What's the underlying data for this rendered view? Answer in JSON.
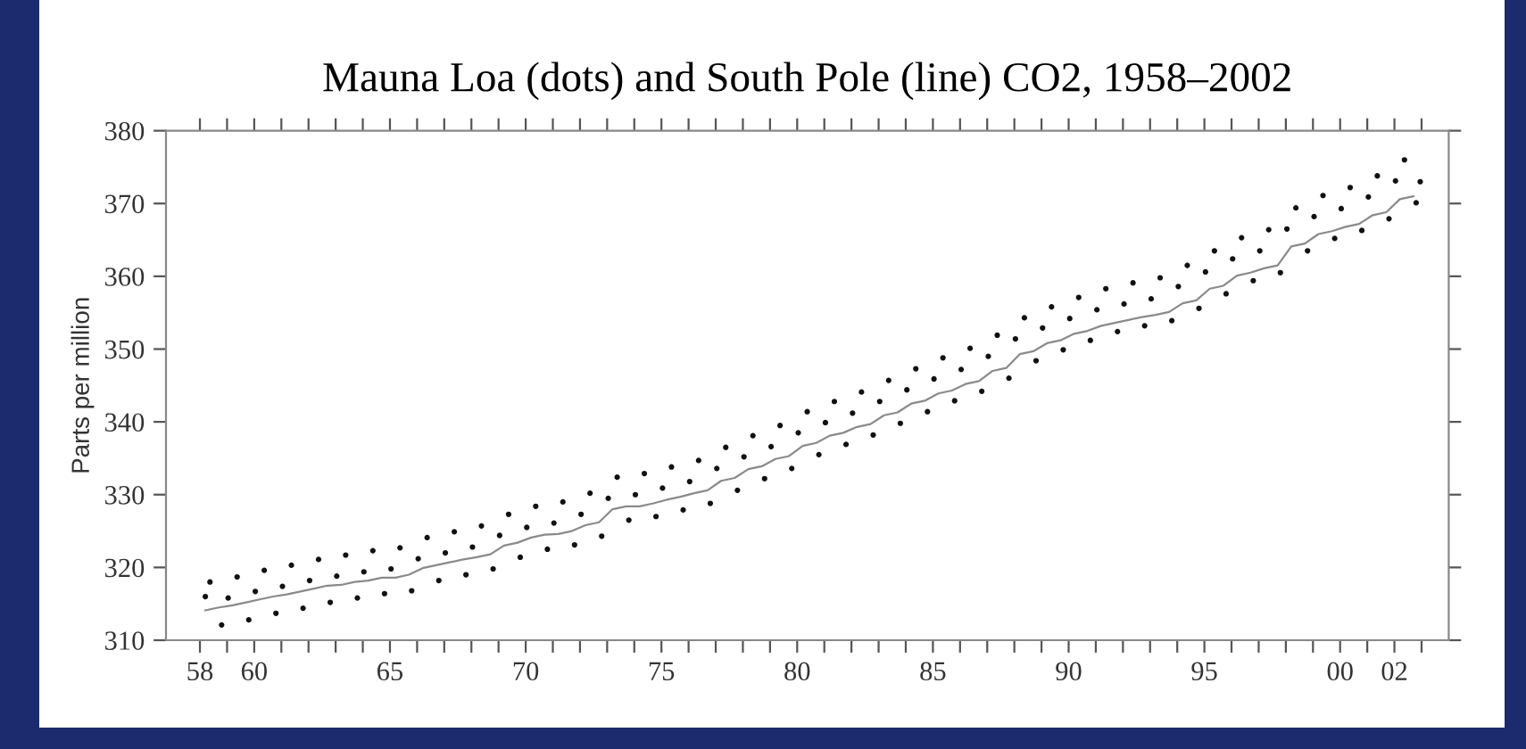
{
  "chart_data": {
    "type": "line",
    "title": "Mauna Loa (dots) and South Pole (line) CO2, 1958–2002",
    "ylabel": "Parts per million",
    "xlim": [
      1956.75,
      2004
    ],
    "ylim": [
      310,
      380
    ],
    "xticks": [
      {
        "value": 1958,
        "label": "58"
      },
      {
        "value": 1959,
        "label": null
      },
      {
        "value": 1960,
        "label": "60"
      },
      {
        "value": 1961,
        "label": null
      },
      {
        "value": 1962,
        "label": null
      },
      {
        "value": 1963,
        "label": null
      },
      {
        "value": 1964,
        "label": null
      },
      {
        "value": 1965,
        "label": "65"
      },
      {
        "value": 1966,
        "label": null
      },
      {
        "value": 1967,
        "label": null
      },
      {
        "value": 1968,
        "label": null
      },
      {
        "value": 1969,
        "label": null
      },
      {
        "value": 1970,
        "label": "70"
      },
      {
        "value": 1971,
        "label": null
      },
      {
        "value": 1972,
        "label": null
      },
      {
        "value": 1973,
        "label": null
      },
      {
        "value": 1974,
        "label": null
      },
      {
        "value": 1975,
        "label": "75"
      },
      {
        "value": 1976,
        "label": null
      },
      {
        "value": 1977,
        "label": null
      },
      {
        "value": 1978,
        "label": null
      },
      {
        "value": 1979,
        "label": null
      },
      {
        "value": 1980,
        "label": "80"
      },
      {
        "value": 1981,
        "label": null
      },
      {
        "value": 1982,
        "label": null
      },
      {
        "value": 1983,
        "label": null
      },
      {
        "value": 1984,
        "label": null
      },
      {
        "value": 1985,
        "label": "85"
      },
      {
        "value": 1986,
        "label": null
      },
      {
        "value": 1987,
        "label": null
      },
      {
        "value": 1988,
        "label": null
      },
      {
        "value": 1989,
        "label": null
      },
      {
        "value": 1990,
        "label": "90"
      },
      {
        "value": 1991,
        "label": null
      },
      {
        "value": 1992,
        "label": null
      },
      {
        "value": 1993,
        "label": null
      },
      {
        "value": 1994,
        "label": null
      },
      {
        "value": 1995,
        "label": "95"
      },
      {
        "value": 1996,
        "label": null
      },
      {
        "value": 1997,
        "label": null
      },
      {
        "value": 1998,
        "label": null
      },
      {
        "value": 1999,
        "label": null
      },
      {
        "value": 2000,
        "label": "00"
      },
      {
        "value": 2001,
        "label": null
      },
      {
        "value": 2002,
        "label": "02"
      },
      {
        "value": 2003,
        "label": null
      }
    ],
    "yticks": [
      310,
      320,
      330,
      340,
      350,
      360,
      370,
      380
    ],
    "series": [
      {
        "color": "#8a8a8a",
        "line_style": "solid",
        "marker": "none",
        "x": [
          1958.2,
          1958.7,
          1959.2,
          1959.7,
          1960.2,
          1960.7,
          1961.2,
          1961.7,
          1962.2,
          1962.7,
          1963.2,
          1963.7,
          1964.2,
          1964.7,
          1965.2,
          1965.7,
          1966.2,
          1966.7,
          1967.2,
          1967.7,
          1968.2,
          1968.7,
          1969.2,
          1969.7,
          1970.2,
          1970.7,
          1971.2,
          1971.7,
          1972.2,
          1972.7,
          1973.2,
          1973.7,
          1974.2,
          1974.7,
          1975.2,
          1975.7,
          1976.2,
          1976.7,
          1977.2,
          1977.7,
          1978.2,
          1978.7,
          1979.2,
          1979.7,
          1980.2,
          1980.7,
          1981.2,
          1981.7,
          1982.2,
          1982.7,
          1983.2,
          1983.7,
          1984.2,
          1984.7,
          1985.2,
          1985.7,
          1986.2,
          1986.7,
          1987.2,
          1987.7,
          1988.2,
          1988.7,
          1989.2,
          1989.7,
          1990.2,
          1990.7,
          1991.2,
          1991.7,
          1992.2,
          1992.7,
          1993.2,
          1993.7,
          1994.2,
          1994.7,
          1995.2,
          1995.7,
          1996.2,
          1996.7,
          1997.2,
          1997.7,
          1998.2,
          1998.7,
          1999.2,
          1999.7,
          2000.2,
          2000.7,
          2001.2,
          2001.7,
          2002.2,
          2002.7
        ],
        "values": [
          314.1,
          314.5,
          314.8,
          315.2,
          315.6,
          316.0,
          316.3,
          316.7,
          317.1,
          317.5,
          317.6,
          318.0,
          318.2,
          318.6,
          318.6,
          319.0,
          319.9,
          320.3,
          320.7,
          321.1,
          321.4,
          321.8,
          323.0,
          323.4,
          324.1,
          324.5,
          324.6,
          325.0,
          325.8,
          326.2,
          328.0,
          328.4,
          328.4,
          328.8,
          329.3,
          329.7,
          330.2,
          330.6,
          331.9,
          332.3,
          333.5,
          333.9,
          334.9,
          335.3,
          336.7,
          337.1,
          338.1,
          338.5,
          339.3,
          339.7,
          340.9,
          341.3,
          342.5,
          342.9,
          343.9,
          344.3,
          345.2,
          345.6,
          347.0,
          347.4,
          349.3,
          349.7,
          350.8,
          351.2,
          352.1,
          352.5,
          353.2,
          353.6,
          354.0,
          354.4,
          354.7,
          355.1,
          356.3,
          356.7,
          358.3,
          358.7,
          360.1,
          360.5,
          361.1,
          361.5,
          364.1,
          364.5,
          365.8,
          366.2,
          366.8,
          367.2,
          368.4,
          368.8,
          370.6,
          371.0
        ]
      },
      {
        "type": "scatter",
        "color": "#111111",
        "marker": "circle",
        "x": [
          1958.2,
          1958.37,
          1958.8,
          1959.04,
          1959.37,
          1959.8,
          1960.04,
          1960.37,
          1960.8,
          1961.04,
          1961.37,
          1961.8,
          1962.04,
          1962.37,
          1962.8,
          1963.04,
          1963.37,
          1963.8,
          1964.04,
          1964.37,
          1964.8,
          1965.04,
          1965.37,
          1965.8,
          1966.04,
          1966.37,
          1966.8,
          1967.04,
          1967.37,
          1967.8,
          1968.04,
          1968.37,
          1968.8,
          1969.04,
          1969.37,
          1969.8,
          1970.04,
          1970.37,
          1970.8,
          1971.04,
          1971.37,
          1971.8,
          1972.04,
          1972.37,
          1972.8,
          1973.04,
          1973.37,
          1973.8,
          1974.04,
          1974.37,
          1974.8,
          1975.04,
          1975.37,
          1975.8,
          1976.04,
          1976.37,
          1976.8,
          1977.04,
          1977.37,
          1977.8,
          1978.04,
          1978.37,
          1978.8,
          1979.04,
          1979.37,
          1979.8,
          1980.04,
          1980.37,
          1980.8,
          1981.04,
          1981.37,
          1981.8,
          1982.04,
          1982.37,
          1982.8,
          1983.04,
          1983.37,
          1983.8,
          1984.04,
          1984.37,
          1984.8,
          1985.04,
          1985.37,
          1985.8,
          1986.04,
          1986.37,
          1986.8,
          1987.04,
          1987.37,
          1987.8,
          1988.04,
          1988.37,
          1988.8,
          1989.04,
          1989.37,
          1989.8,
          1990.04,
          1990.37,
          1990.8,
          1991.04,
          1991.37,
          1991.8,
          1992.04,
          1992.37,
          1992.8,
          1993.04,
          1993.37,
          1993.8,
          1994.04,
          1994.37,
          1994.8,
          1995.04,
          1995.37,
          1995.8,
          1996.04,
          1996.37,
          1996.8,
          1997.04,
          1997.37,
          1997.8,
          1998.04,
          1998.37,
          1998.8,
          1999.04,
          1999.37,
          1999.8,
          2000.04,
          2000.37,
          2000.8,
          2001.04,
          2001.37,
          2001.8,
          2002.04,
          2002.37,
          2002.8,
          2002.95
        ],
        "values": [
          316.0,
          318.0,
          312.1,
          315.8,
          318.7,
          312.8,
          316.7,
          319.6,
          313.7,
          317.4,
          320.3,
          314.4,
          318.2,
          321.1,
          315.2,
          318.8,
          321.7,
          315.8,
          319.4,
          322.3,
          316.4,
          319.8,
          322.7,
          316.8,
          321.2,
          324.1,
          318.2,
          322.0,
          324.9,
          319.0,
          322.8,
          325.7,
          319.8,
          324.4,
          327.3,
          321.4,
          325.5,
          328.4,
          322.5,
          326.1,
          329.0,
          323.1,
          327.3,
          330.2,
          324.3,
          329.5,
          332.4,
          326.5,
          330.0,
          332.9,
          327.0,
          330.9,
          333.8,
          327.9,
          331.8,
          334.7,
          328.8,
          333.6,
          336.5,
          330.6,
          335.2,
          338.1,
          332.2,
          336.6,
          339.5,
          333.6,
          338.5,
          341.4,
          335.5,
          339.9,
          342.8,
          336.9,
          341.2,
          344.1,
          338.2,
          342.8,
          345.7,
          339.8,
          344.4,
          347.3,
          341.4,
          345.9,
          348.8,
          342.9,
          347.2,
          350.1,
          344.2,
          349.0,
          351.9,
          346.0,
          351.4,
          354.3,
          348.4,
          352.9,
          355.8,
          349.9,
          354.2,
          357.1,
          351.2,
          355.4,
          358.3,
          352.4,
          356.2,
          359.1,
          353.2,
          356.9,
          359.8,
          353.9,
          358.6,
          361.5,
          355.6,
          360.6,
          363.5,
          357.6,
          362.4,
          365.3,
          359.4,
          363.5,
          366.4,
          360.5,
          366.5,
          369.4,
          363.5,
          368.2,
          371.1,
          365.2,
          369.3,
          372.2,
          366.3,
          370.9,
          373.8,
          367.9,
          373.1,
          376.0,
          370.1,
          373.0
        ]
      }
    ]
  }
}
